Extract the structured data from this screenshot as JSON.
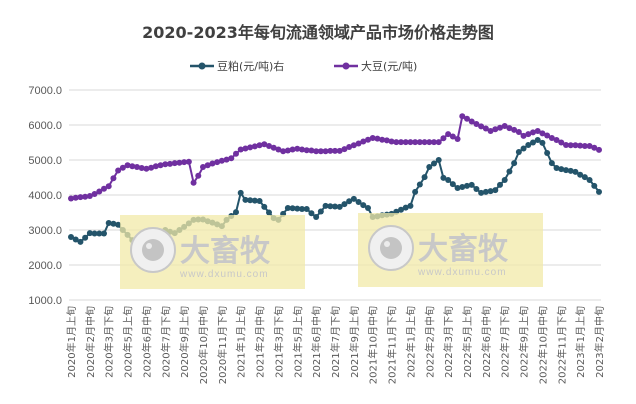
{
  "chart_data": {
    "type": "line",
    "title": "2020-2023年每旬流通领域产品市场价格走势图",
    "x_tick_labels": [
      "2020年1月上旬",
      "2020年2月中旬",
      "2020年3月下旬",
      "2020年5月上旬",
      "2020年6月中旬",
      "2020年7月下旬",
      "2020年9月上旬",
      "2020年10月中旬",
      "2020年11月下旬",
      "2021年1月上旬",
      "2021年2月中旬",
      "2021年3月下旬",
      "2021年5月上旬",
      "2021年6月中旬",
      "2021年7月下旬",
      "2021年9月上旬",
      "2021年10月中旬",
      "2021年11月下旬",
      "2022年1月上旬",
      "2022年2月中旬",
      "2022年3月下旬",
      "2022年5月上旬",
      "2022年6月中旬",
      "2022年7月下旬",
      "2022年9月上旬",
      "2022年10月中旬",
      "2022年11月下旬",
      "2023年1月上旬",
      "2023年2月中旬"
    ],
    "y_tick_labels": [
      "1000.0",
      "2000.0",
      "3000.0",
      "4000.0",
      "5000.0",
      "6000.0",
      "7000.0"
    ],
    "ylim": [
      1000,
      7000
    ],
    "grid": true,
    "legend_placement": "top",
    "series": [
      {
        "name": "豆粕(元/吨)右",
        "color": "#24546a",
        "marker": "circle",
        "values": [
          2800,
          2730,
          2660,
          2780,
          2910,
          2900,
          2900,
          2900,
          3200,
          3180,
          3150,
          3000,
          2860,
          2710,
          2700,
          2700,
          2700,
          2800,
          2870,
          2930,
          3000,
          2950,
          2910,
          3000,
          3090,
          3190,
          3290,
          3300,
          3300,
          3250,
          3210,
          3160,
          3110,
          3290,
          3400,
          3510,
          4060,
          3860,
          3850,
          3840,
          3830,
          3660,
          3500,
          3340,
          3290,
          3460,
          3630,
          3620,
          3610,
          3600,
          3600,
          3480,
          3370,
          3530,
          3690,
          3680,
          3670,
          3660,
          3740,
          3820,
          3890,
          3800,
          3710,
          3630,
          3370,
          3390,
          3420,
          3440,
          3460,
          3520,
          3580,
          3640,
          3690,
          4090,
          4300,
          4510,
          4800,
          4900,
          5000,
          4490,
          4430,
          4310,
          4200,
          4230,
          4260,
          4290,
          4170,
          4060,
          4090,
          4110,
          4140,
          4290,
          4430,
          4670,
          4910,
          5230,
          5330,
          5430,
          5500,
          5570,
          5490,
          5200,
          4910,
          4770,
          4740,
          4710,
          4690,
          4660,
          4580,
          4510,
          4430,
          4260,
          4090
        ]
      },
      {
        "name": "大豆(元/吨)",
        "color": "#7030a0",
        "marker": "circle",
        "values": [
          3900,
          3920,
          3940,
          3950,
          3970,
          4030,
          4100,
          4180,
          4250,
          4480,
          4700,
          4780,
          4850,
          4820,
          4800,
          4770,
          4750,
          4780,
          4820,
          4850,
          4880,
          4890,
          4910,
          4920,
          4940,
          4950,
          4350,
          4550,
          4800,
          4850,
          4900,
          4940,
          4980,
          5010,
          5050,
          5180,
          5300,
          5330,
          5360,
          5390,
          5420,
          5450,
          5400,
          5350,
          5300,
          5250,
          5270,
          5300,
          5320,
          5300,
          5280,
          5270,
          5250,
          5250,
          5250,
          5260,
          5260,
          5260,
          5310,
          5370,
          5420,
          5470,
          5530,
          5580,
          5630,
          5610,
          5580,
          5560,
          5530,
          5510,
          5510,
          5510,
          5510,
          5510,
          5510,
          5510,
          5510,
          5510,
          5510,
          5620,
          5740,
          5670,
          5600,
          6250,
          6180,
          6100,
          6030,
          5960,
          5900,
          5830,
          5880,
          5920,
          5970,
          5910,
          5860,
          5800,
          5690,
          5740,
          5790,
          5830,
          5760,
          5700,
          5630,
          5570,
          5500,
          5430,
          5420,
          5420,
          5410,
          5400,
          5400,
          5350,
          5290
        ]
      }
    ]
  },
  "watermark": {
    "logo_text": "大畜牧",
    "url_text": "www.dxumu.com",
    "bg_color": "#f2eaa8"
  }
}
